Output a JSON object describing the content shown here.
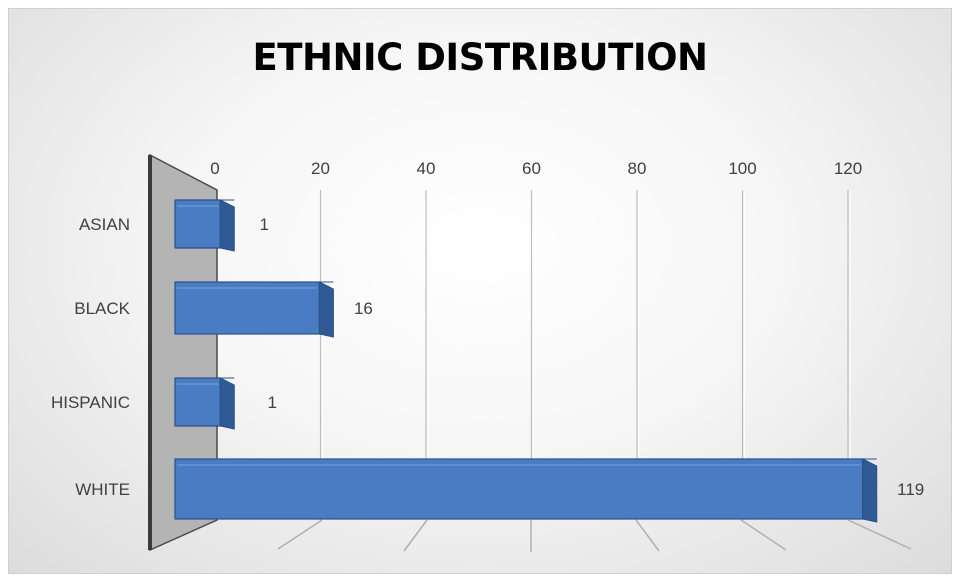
{
  "chart_data": {
    "type": "bar",
    "orientation": "horizontal",
    "style": "3d",
    "title": "ETHNIC DISTRIBUTION",
    "categories": [
      "ASIAN",
      "BLACK",
      "HISPANIC",
      "WHITE"
    ],
    "values": [
      1,
      16,
      1,
      119
    ],
    "data_labels": [
      "1",
      "16",
      "1",
      "119"
    ],
    "xlim": [
      0,
      120
    ],
    "x_ticks": [
      0,
      20,
      40,
      60,
      80,
      100,
      120
    ],
    "x_tick_labels": [
      "0",
      "20",
      "40",
      "60",
      "80",
      "100",
      "120"
    ],
    "x_axis_position": "top",
    "gridlines": true,
    "legend": "none",
    "colors": {
      "bar_front": "#4a7cc4",
      "bar_top": "#6f9ad8",
      "bar_side": "#2f5a96",
      "bar_edge": "#2b5088",
      "back_wall": "#b4b4b4",
      "back_wall_edge": "#4a4a4a",
      "gridline": "#bdbdbd",
      "text": "#404040"
    }
  }
}
